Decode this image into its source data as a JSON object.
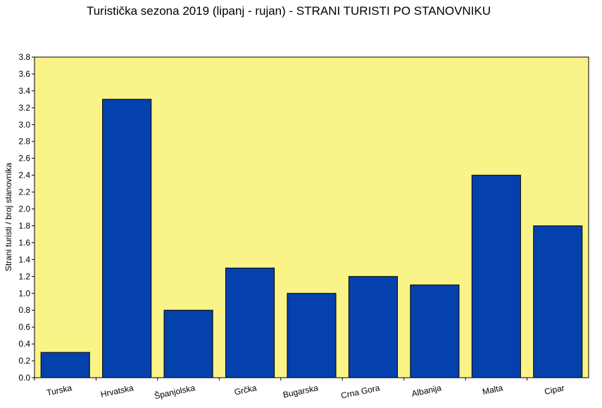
{
  "chart_data": {
    "type": "bar",
    "title": "Turistička sezona 2019 (lipanj - rujan) - STRANI TURISTI PO STANOVNIKU",
    "xlabel": "",
    "ylabel": "Strani turisti / broj stanovnika",
    "categories": [
      "Turska",
      "Hrvatska",
      "Španjolska",
      "Grčka",
      "Bugarska",
      "Crna Gora",
      "Albanija",
      "Malta",
      "Cipar"
    ],
    "values": [
      0.3,
      3.3,
      0.8,
      1.3,
      1.0,
      1.2,
      1.1,
      2.4,
      1.8
    ],
    "ylim": [
      0,
      3.8
    ],
    "yticks": [
      "0.0",
      "0.2",
      "0.4",
      "0.6",
      "0.8",
      "1.0",
      "1.2",
      "1.4",
      "1.6",
      "1.8",
      "2.0",
      "2.2",
      "2.4",
      "2.6",
      "2.8",
      "3.0",
      "3.2",
      "3.4",
      "3.6",
      "3.8"
    ],
    "grid": false,
    "colors": {
      "plot_background": "#faf387",
      "bar": "#0441ac",
      "bar_edge": "#000000"
    }
  }
}
